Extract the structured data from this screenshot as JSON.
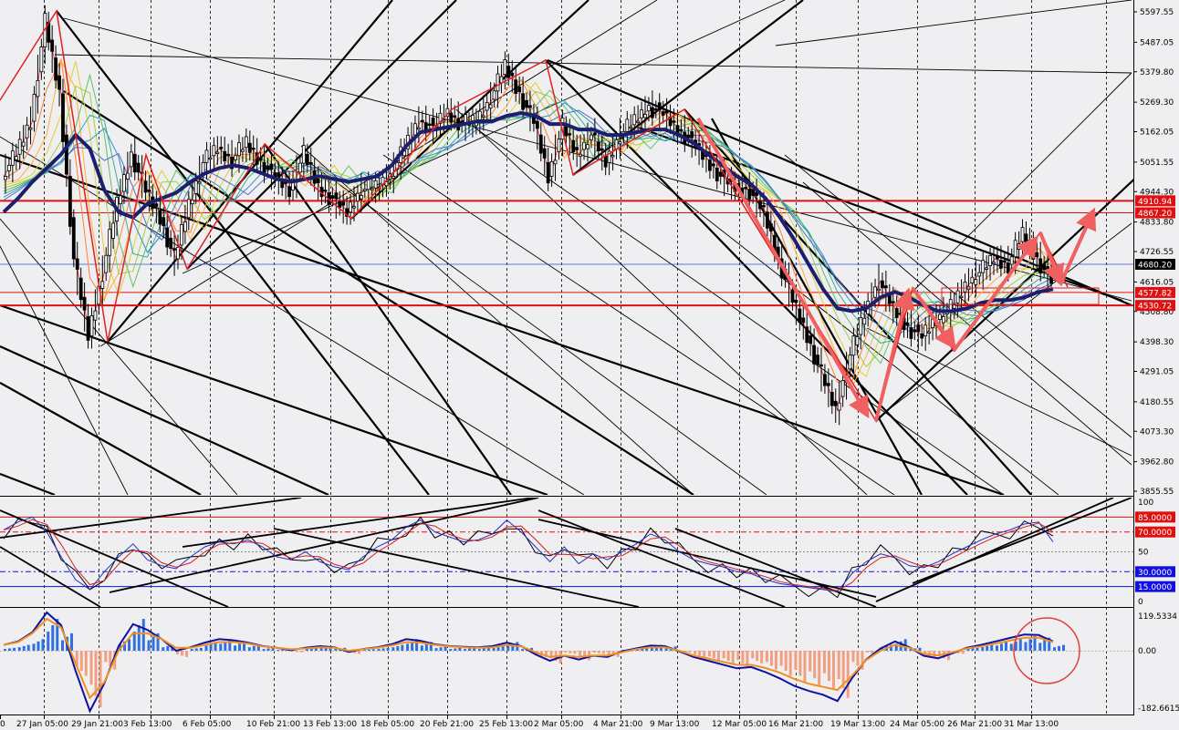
{
  "chart_data": {
    "type": "line",
    "title": "",
    "price_axis_ticks": [
      "5597.55",
      "5487.05",
      "5379.80",
      "5269.30",
      "5162.05",
      "5051.55",
      "4944.30",
      "4833.80",
      "4726.55",
      "4616.05",
      "4508.80",
      "4398.30",
      "4291.05",
      "4180.55",
      "4073.30",
      "3962.80",
      "3855.55"
    ],
    "price_tags": [
      {
        "label": "4910.94",
        "value": 4910.94,
        "color": "#e01010"
      },
      {
        "label": "4867.20",
        "value": 4867.2,
        "color": "#e01010"
      },
      {
        "label": "4680.20",
        "value": 4680.2,
        "color": "#000000"
      },
      {
        "label": "4577.82",
        "value": 4577.82,
        "color": "#e01010"
      },
      {
        "label": "4530.72",
        "value": 4530.72,
        "color": "#e01010"
      }
    ],
    "x_labels": [
      "0",
      "27 Jan 05:00",
      "29 Jan 21:00",
      "3 Feb 13:00",
      "6 Feb 05:00",
      "10 Feb 21:00",
      "13 Feb 13:00",
      "18 Feb 05:00",
      "20 Feb 21:00",
      "25 Feb 13:00",
      "2 Mar 05:00",
      "4 Mar 21:00",
      "9 Mar 13:00",
      "12 Mar 05:00",
      "16 Mar 21:00",
      "19 Mar 13:00",
      "24 Mar 05:00",
      "26 Mar 21:00",
      "31 Mar 13:00"
    ],
    "price_series": [
      5000,
      5080,
      5200,
      5560,
      5300,
      4700,
      4420,
      4650,
      4900,
      5080,
      4950,
      4850,
      4700,
      4900,
      5050,
      5100,
      5060,
      5120,
      5050,
      5000,
      4950,
      5080,
      4960,
      4920,
      4870,
      4950,
      4960,
      5000,
      5100,
      5200,
      5180,
      5230,
      5190,
      5200,
      5280,
      5400,
      5300,
      5200,
      5000,
      5180,
      5080,
      5150,
      5050,
      5150,
      5200,
      5250,
      5230,
      5170,
      5130,
      5060,
      5000,
      4960,
      4950,
      4870,
      4700,
      4550,
      4420,
      4280,
      4150,
      4350,
      4500,
      4620,
      4520,
      4450,
      4420,
      4480,
      4520,
      4600,
      4650,
      4700,
      4680,
      4790,
      4700,
      4620
    ],
    "ma_series": [
      4870,
      4920,
      4980,
      5030,
      5080,
      5150,
      5100,
      4950,
      4870,
      4850,
      4900,
      4920,
      4940,
      4980,
      5010,
      5030,
      5040,
      5030,
      5010,
      4990,
      4980,
      4990,
      5000,
      4990,
      4980,
      4990,
      5000,
      5040,
      5110,
      5160,
      5170,
      5180,
      5190,
      5200,
      5200,
      5220,
      5230,
      5220,
      5190,
      5190,
      5170,
      5170,
      5150,
      5150,
      5160,
      5170,
      5170,
      5150,
      5120,
      5080,
      5040,
      5000,
      4970,
      4920,
      4850,
      4770,
      4680,
      4590,
      4520,
      4510,
      4520,
      4560,
      4580,
      4560,
      4530,
      4510,
      4510,
      4520,
      4540,
      4550,
      4550,
      4560,
      4580,
      4590
    ],
    "oscillator": {
      "levels": [
        {
          "label": "85.0000",
          "value": 85,
          "color": "#e01010"
        },
        {
          "label": "70.0000",
          "value": 70,
          "color": "#e01010"
        },
        {
          "label": "30.0000",
          "value": 30,
          "color": "#1010e0"
        },
        {
          "label": "15.0000",
          "value": 15,
          "color": "#1010e0"
        }
      ],
      "scale_labels": [
        "100",
        "50",
        "0"
      ],
      "values": [
        72,
        80,
        85,
        70,
        45,
        22,
        12,
        30,
        45,
        58,
        42,
        36,
        33,
        45,
        55,
        60,
        58,
        62,
        55,
        45,
        42,
        50,
        40,
        35,
        32,
        45,
        55,
        62,
        75,
        82,
        70,
        65,
        60,
        62,
        68,
        82,
        70,
        55,
        40,
        55,
        38,
        48,
        42,
        50,
        58,
        68,
        62,
        50,
        42,
        38,
        35,
        30,
        28,
        22,
        18,
        16,
        14,
        12,
        10,
        28,
        40,
        48,
        44,
        36,
        34,
        40,
        48,
        55,
        62,
        68,
        72,
        78,
        80,
        60
      ]
    },
    "macd": {
      "scale_labels": [
        "119.5334",
        "0.00",
        "-182.6615"
      ],
      "histogram": [
        10,
        20,
        40,
        110,
        60,
        -80,
        -180,
        -60,
        40,
        110,
        60,
        20,
        -20,
        10,
        30,
        40,
        30,
        20,
        10,
        5,
        -5,
        10,
        15,
        10,
        -10,
        5,
        10,
        20,
        40,
        30,
        15,
        10,
        10,
        10,
        15,
        30,
        10,
        -20,
        -40,
        -10,
        -30,
        -10,
        -20,
        5,
        10,
        20,
        15,
        -5,
        -20,
        -30,
        -40,
        -50,
        -40,
        -60,
        -80,
        -100,
        -110,
        -120,
        -150,
        -60,
        -10,
        20,
        40,
        10,
        -20,
        -30,
        -10,
        10,
        20,
        30,
        40,
        50,
        45,
        20
      ],
      "signal": [
        20,
        30,
        60,
        110,
        80,
        -40,
        -150,
        -100,
        0,
        60,
        60,
        40,
        10,
        10,
        20,
        30,
        30,
        25,
        15,
        10,
        5,
        8,
        12,
        10,
        0,
        5,
        10,
        18,
        30,
        28,
        20,
        15,
        12,
        10,
        12,
        20,
        15,
        -5,
        -20,
        -15,
        -20,
        -15,
        -15,
        -5,
        5,
        12,
        12,
        0,
        -15,
        -25,
        -35,
        -45,
        -45,
        -55,
        -70,
        -90,
        -105,
        -115,
        -125,
        -80,
        -30,
        0,
        20,
        10,
        -10,
        -15,
        -5,
        8,
        15,
        25,
        35,
        45,
        45,
        30
      ]
    }
  }
}
